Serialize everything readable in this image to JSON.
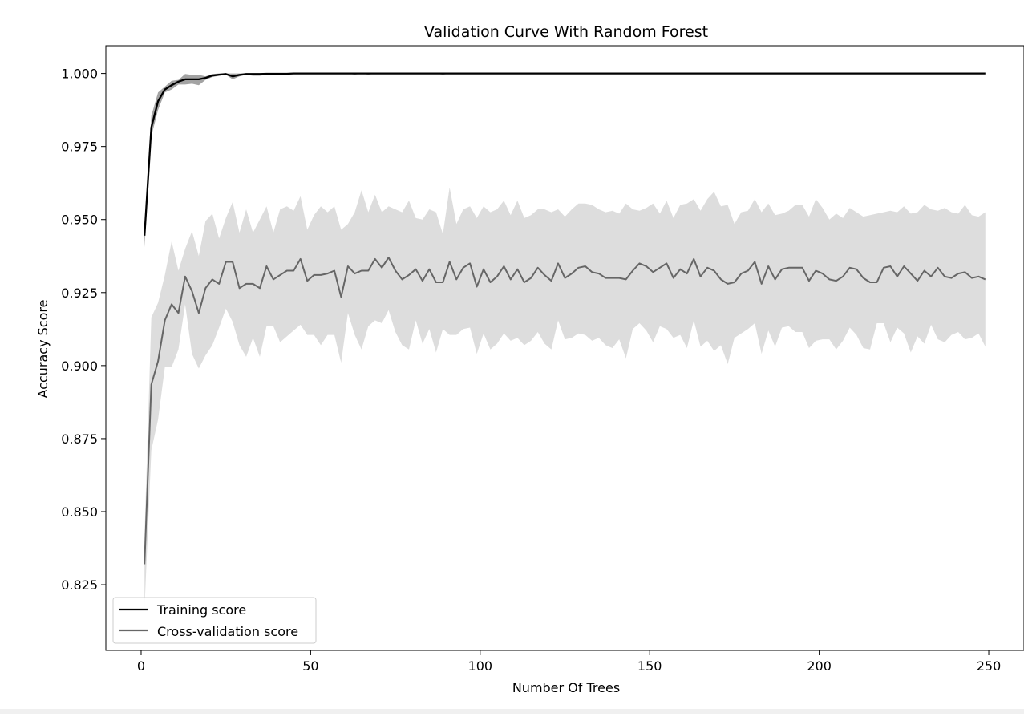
{
  "chart_data": {
    "type": "line",
    "title": "Validation Curve With Random Forest",
    "xlabel": "Number Of Trees",
    "ylabel": "Accuracy Score",
    "xlim": [
      -10.4,
      260.4
    ],
    "ylim": [
      0.8025,
      1.0095
    ],
    "xticks": [
      0,
      50,
      100,
      150,
      200,
      250
    ],
    "xtick_labels": [
      "0",
      "50",
      "100",
      "150",
      "200",
      "250"
    ],
    "yticks": [
      0.825,
      0.85,
      0.875,
      0.9,
      0.925,
      0.95,
      0.975,
      1.0
    ],
    "ytick_labels": [
      "0.825",
      "0.850",
      "0.875",
      "0.900",
      "0.925",
      "0.950",
      "0.975",
      "1.000"
    ],
    "grid": false,
    "legend_position": "lower-left",
    "x": [
      1,
      3,
      5,
      7,
      9,
      11,
      13,
      15,
      17,
      19,
      21,
      23,
      25,
      27,
      29,
      31,
      33,
      35,
      37,
      39,
      41,
      43,
      45,
      47,
      49,
      51,
      53,
      55,
      57,
      59,
      61,
      63,
      65,
      67,
      69,
      71,
      73,
      75,
      77,
      79,
      81,
      83,
      85,
      87,
      89,
      91,
      93,
      95,
      97,
      99,
      101,
      103,
      105,
      107,
      109,
      111,
      113,
      115,
      117,
      119,
      121,
      123,
      125,
      127,
      129,
      131,
      133,
      135,
      137,
      139,
      141,
      143,
      145,
      147,
      149,
      151,
      153,
      155,
      157,
      159,
      161,
      163,
      165,
      167,
      169,
      171,
      173,
      175,
      177,
      179,
      181,
      183,
      185,
      187,
      189,
      191,
      193,
      195,
      197,
      199,
      201,
      203,
      205,
      207,
      209,
      211,
      213,
      215,
      217,
      219,
      221,
      223,
      225,
      227,
      229,
      231,
      233,
      235,
      237,
      239,
      241,
      243,
      245,
      247,
      249
    ],
    "series": [
      {
        "name": "Training score",
        "color": "#000000",
        "values": [
          0.9445,
          0.9815,
          0.9905,
          0.9945,
          0.996,
          0.9972,
          0.998,
          0.998,
          0.998,
          0.9985,
          0.9993,
          0.9996,
          0.9998,
          0.999,
          0.9995,
          0.9998,
          0.9998,
          0.9998,
          0.9999,
          0.9999,
          0.9999,
          0.9999,
          1.0,
          1.0,
          1.0,
          1.0,
          1.0,
          1.0,
          1.0,
          1.0,
          1.0,
          1.0,
          1.0,
          1.0,
          1.0,
          1.0,
          1.0,
          1.0,
          1.0,
          1.0,
          1.0,
          1.0,
          1.0,
          1.0,
          1.0,
          1.0,
          1.0,
          1.0,
          1.0,
          1.0,
          1.0,
          1.0,
          1.0,
          1.0,
          1.0,
          1.0,
          1.0,
          1.0,
          1.0,
          1.0,
          1.0,
          1.0,
          1.0,
          1.0,
          1.0,
          1.0,
          1.0,
          1.0,
          1.0,
          1.0,
          1.0,
          1.0,
          1.0,
          1.0,
          1.0,
          1.0,
          1.0,
          1.0,
          1.0,
          1.0,
          1.0,
          1.0,
          1.0,
          1.0,
          1.0,
          1.0,
          1.0,
          1.0,
          1.0,
          1.0,
          1.0,
          1.0,
          1.0,
          1.0,
          1.0,
          1.0,
          1.0,
          1.0,
          1.0,
          1.0,
          1.0,
          1.0,
          1.0,
          1.0,
          1.0,
          1.0,
          1.0,
          1.0,
          1.0,
          1.0,
          1.0,
          1.0,
          1.0,
          1.0,
          1.0,
          1.0,
          1.0,
          1.0,
          1.0,
          1.0,
          1.0,
          1.0,
          1.0,
          1.0,
          1.0
        ],
        "band_upper": [
          0.9465,
          0.9855,
          0.9935,
          0.9955,
          0.9975,
          0.9978,
          0.9998,
          0.9995,
          0.9995,
          0.999,
          0.9998,
          1.0,
          1.0,
          1.0,
          1.0,
          1.0,
          1.0,
          1.0,
          1.0,
          1.0,
          1.0,
          1.0,
          1.0,
          1.0,
          1.0,
          1.0,
          1.0,
          1.0,
          1.0,
          1.0,
          1.0,
          1.0,
          1.0,
          1.0,
          1.0,
          1.0,
          1.0,
          1.0,
          1.0,
          1.0,
          1.0,
          1.0,
          1.0,
          1.0,
          1.0,
          1.0,
          1.0,
          1.0,
          1.0,
          1.0,
          1.0,
          1.0,
          1.0,
          1.0,
          1.0,
          1.0,
          1.0,
          1.0,
          1.0,
          1.0,
          1.0,
          1.0,
          1.0,
          1.0,
          1.0,
          1.0,
          1.0,
          1.0,
          1.0,
          1.0,
          1.0,
          1.0,
          1.0,
          1.0,
          1.0,
          1.0,
          1.0,
          1.0,
          1.0,
          1.0,
          1.0,
          1.0,
          1.0,
          1.0,
          1.0,
          1.0,
          1.0,
          1.0,
          1.0,
          1.0,
          1.0,
          1.0,
          1.0,
          1.0,
          1.0,
          1.0,
          1.0,
          1.0,
          1.0,
          1.0,
          1.0,
          1.0,
          1.0,
          1.0,
          1.0,
          1.0,
          1.0,
          1.0,
          1.0,
          1.0,
          1.0,
          1.0,
          1.0,
          1.0,
          1.0,
          1.0,
          1.0,
          1.0,
          1.0,
          1.0,
          1.0,
          1.0,
          1.0,
          1.0,
          1.0
        ],
        "band_lower": [
          0.9405,
          0.9785,
          0.9875,
          0.9935,
          0.9945,
          0.9962,
          0.9962,
          0.9965,
          0.996,
          0.9978,
          0.9988,
          0.9992,
          0.9996,
          0.998,
          0.999,
          0.9996,
          0.9992,
          0.9992,
          0.9996,
          0.9996,
          0.9996,
          0.9996,
          1.0,
          1.0,
          1.0,
          1.0,
          1.0,
          1.0,
          1.0,
          1.0,
          1.0,
          0.9996,
          1.0,
          0.9996,
          1.0,
          1.0,
          1.0,
          1.0,
          1.0,
          1.0,
          1.0,
          1.0,
          1.0,
          1.0,
          0.9996,
          1.0,
          1.0,
          1.0,
          1.0,
          1.0,
          1.0,
          1.0,
          1.0,
          1.0,
          1.0,
          1.0,
          1.0,
          1.0,
          1.0,
          1.0,
          1.0,
          1.0,
          1.0,
          1.0,
          1.0,
          1.0,
          1.0,
          1.0,
          1.0,
          1.0,
          1.0,
          1.0,
          1.0,
          1.0,
          1.0,
          1.0,
          1.0,
          1.0,
          1.0,
          1.0,
          1.0,
          1.0,
          1.0,
          1.0,
          1.0,
          1.0,
          1.0,
          1.0,
          1.0,
          1.0,
          1.0,
          1.0,
          1.0,
          1.0,
          1.0,
          1.0,
          1.0,
          1.0,
          1.0,
          1.0,
          1.0,
          1.0,
          1.0,
          1.0,
          1.0,
          1.0,
          1.0,
          1.0,
          1.0,
          1.0,
          1.0,
          1.0,
          1.0,
          1.0,
          1.0,
          1.0,
          1.0,
          1.0,
          1.0,
          1.0,
          1.0,
          1.0,
          1.0,
          1.0,
          1.0
        ]
      },
      {
        "name": "Cross-validation score",
        "color": "#666666",
        "values": [
          0.832,
          0.8935,
          0.9015,
          0.9155,
          0.921,
          0.918,
          0.9305,
          0.9255,
          0.918,
          0.9265,
          0.9295,
          0.928,
          0.9355,
          0.9355,
          0.9265,
          0.928,
          0.928,
          0.9265,
          0.934,
          0.9295,
          0.931,
          0.9325,
          0.9325,
          0.9365,
          0.929,
          0.931,
          0.931,
          0.9315,
          0.9325,
          0.9235,
          0.934,
          0.9315,
          0.9325,
          0.9325,
          0.9365,
          0.9335,
          0.937,
          0.9325,
          0.9295,
          0.931,
          0.933,
          0.929,
          0.933,
          0.9285,
          0.9285,
          0.9355,
          0.9295,
          0.9335,
          0.935,
          0.927,
          0.933,
          0.9285,
          0.9305,
          0.934,
          0.9295,
          0.933,
          0.9285,
          0.93,
          0.9335,
          0.931,
          0.929,
          0.935,
          0.93,
          0.9315,
          0.9335,
          0.934,
          0.932,
          0.9315,
          0.93,
          0.93,
          0.93,
          0.9295,
          0.9325,
          0.935,
          0.934,
          0.932,
          0.9335,
          0.935,
          0.93,
          0.933,
          0.9315,
          0.9365,
          0.9305,
          0.9335,
          0.9325,
          0.9295,
          0.928,
          0.9285,
          0.9315,
          0.9325,
          0.9355,
          0.928,
          0.934,
          0.9295,
          0.933,
          0.9335,
          0.9335,
          0.9335,
          0.929,
          0.9325,
          0.9315,
          0.9295,
          0.929,
          0.9305,
          0.9335,
          0.933,
          0.93,
          0.9285,
          0.9285,
          0.9335,
          0.934,
          0.9305,
          0.934,
          0.9315,
          0.929,
          0.9325,
          0.9305,
          0.9335,
          0.9305,
          0.93,
          0.9315,
          0.932,
          0.93,
          0.9305,
          0.9295
        ],
        "band_upper": [
          0.8415,
          0.9165,
          0.9215,
          0.931,
          0.9425,
          0.9325,
          0.94,
          0.946,
          0.9375,
          0.9495,
          0.952,
          0.9435,
          0.9505,
          0.956,
          0.9455,
          0.9535,
          0.9455,
          0.95,
          0.9545,
          0.9455,
          0.9535,
          0.9545,
          0.953,
          0.958,
          0.9465,
          0.9515,
          0.9545,
          0.9525,
          0.9545,
          0.9465,
          0.9485,
          0.9525,
          0.96,
          0.9525,
          0.9585,
          0.9525,
          0.9545,
          0.9535,
          0.9525,
          0.9565,
          0.9505,
          0.95,
          0.9535,
          0.9525,
          0.945,
          0.961,
          0.9485,
          0.9535,
          0.9545,
          0.9505,
          0.9545,
          0.9525,
          0.9535,
          0.9565,
          0.9515,
          0.9565,
          0.9505,
          0.9515,
          0.9535,
          0.9535,
          0.9525,
          0.9535,
          0.951,
          0.9535,
          0.9555,
          0.9555,
          0.955,
          0.9535,
          0.9525,
          0.953,
          0.952,
          0.9555,
          0.9535,
          0.953,
          0.954,
          0.9555,
          0.952,
          0.9565,
          0.9505,
          0.955,
          0.9555,
          0.957,
          0.953,
          0.957,
          0.9595,
          0.9545,
          0.955,
          0.9485,
          0.9525,
          0.953,
          0.957,
          0.9525,
          0.9555,
          0.9515,
          0.952,
          0.953,
          0.955,
          0.955,
          0.951,
          0.957,
          0.954,
          0.95,
          0.952,
          0.9505,
          0.954,
          0.9525,
          0.951,
          0.9515,
          0.952,
          0.9525,
          0.953,
          0.9525,
          0.9545,
          0.952,
          0.9525,
          0.955,
          0.9535,
          0.953,
          0.954,
          0.9525,
          0.952,
          0.955,
          0.9515,
          0.951,
          0.9525
        ],
        "band_lower": [
          0.8165,
          0.871,
          0.8815,
          0.8995,
          0.8995,
          0.9055,
          0.921,
          0.904,
          0.899,
          0.9035,
          0.907,
          0.913,
          0.9195,
          0.915,
          0.907,
          0.903,
          0.9095,
          0.903,
          0.9135,
          0.9135,
          0.908,
          0.91,
          0.912,
          0.914,
          0.9105,
          0.9105,
          0.907,
          0.9105,
          0.9105,
          0.901,
          0.918,
          0.9105,
          0.9055,
          0.9135,
          0.9155,
          0.9145,
          0.919,
          0.9115,
          0.907,
          0.9055,
          0.9155,
          0.9075,
          0.9125,
          0.9045,
          0.9125,
          0.9105,
          0.9105,
          0.9125,
          0.913,
          0.904,
          0.911,
          0.9055,
          0.9075,
          0.911,
          0.9085,
          0.9095,
          0.907,
          0.9085,
          0.9115,
          0.9075,
          0.9055,
          0.9155,
          0.909,
          0.9095,
          0.911,
          0.9105,
          0.9085,
          0.9095,
          0.907,
          0.906,
          0.909,
          0.9025,
          0.9125,
          0.9145,
          0.912,
          0.908,
          0.9135,
          0.9125,
          0.9095,
          0.9105,
          0.906,
          0.9155,
          0.9065,
          0.9085,
          0.905,
          0.907,
          0.9005,
          0.9095,
          0.911,
          0.9125,
          0.9145,
          0.904,
          0.912,
          0.9065,
          0.913,
          0.9135,
          0.9115,
          0.9115,
          0.906,
          0.9085,
          0.909,
          0.909,
          0.9055,
          0.9085,
          0.913,
          0.9105,
          0.906,
          0.9055,
          0.9145,
          0.9145,
          0.908,
          0.913,
          0.911,
          0.9045,
          0.91,
          0.9075,
          0.914,
          0.909,
          0.908,
          0.9105,
          0.9115,
          0.909,
          0.9095,
          0.911,
          0.9065
        ]
      }
    ]
  }
}
